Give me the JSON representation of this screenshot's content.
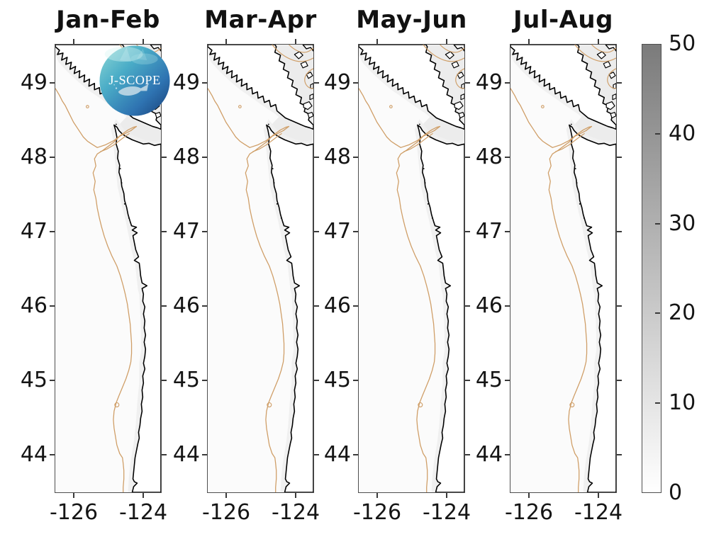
{
  "panels": [
    {
      "title": "Jan-Feb"
    },
    {
      "title": "Mar-Apr"
    },
    {
      "title": "May-Jun"
    },
    {
      "title": "Jul-Aug"
    }
  ],
  "y_axis": {
    "tick_labels": [
      "49",
      "48",
      "47",
      "46",
      "45",
      "44"
    ]
  },
  "x_axis": {
    "tick_labels": [
      "-126",
      "-124"
    ]
  },
  "colorbar": {
    "tick_labels": [
      "50",
      "40",
      "30",
      "20",
      "10",
      "0"
    ],
    "min": 0,
    "max": 50
  },
  "logo": {
    "text": "J-SCOPE"
  },
  "colors": {
    "coastline": "#000000",
    "isobath_contour": "#cf9e67",
    "colorbar_top": "#7b7b7b",
    "colorbar_bottom": "#ffffff",
    "ocean": "#fbfbfb",
    "land": "#ffffff",
    "strait_shading": "#ececec"
  },
  "chart_data": {
    "type": "map",
    "subplot_titles": [
      "Jan-Feb",
      "Mar-Apr",
      "May-Jun",
      "Jul-Aug"
    ],
    "x_ticks": [
      -126,
      -124
    ],
    "y_ticks": [
      49,
      48,
      47,
      46,
      45,
      44
    ],
    "x_range": [
      -126.6,
      -123.45
    ],
    "y_range": [
      43.5,
      49.5
    ],
    "colorbar": {
      "range": [
        0,
        50
      ],
      "ticks": [
        0,
        10,
        20,
        30,
        40,
        50
      ],
      "colormap": "white (0) to medium gray (50)"
    },
    "map_features": [
      "black coastline: Vancouver Island, Strait of Juan de Fuca, Washington and Oregon coasts",
      "tan shelf-break isobath contour running alongshore with a tongue into the strait",
      "mapped field is near 0 (white) across all four bimonthly panels",
      "circular J-SCOPE logo overlaid on first panel"
    ]
  }
}
